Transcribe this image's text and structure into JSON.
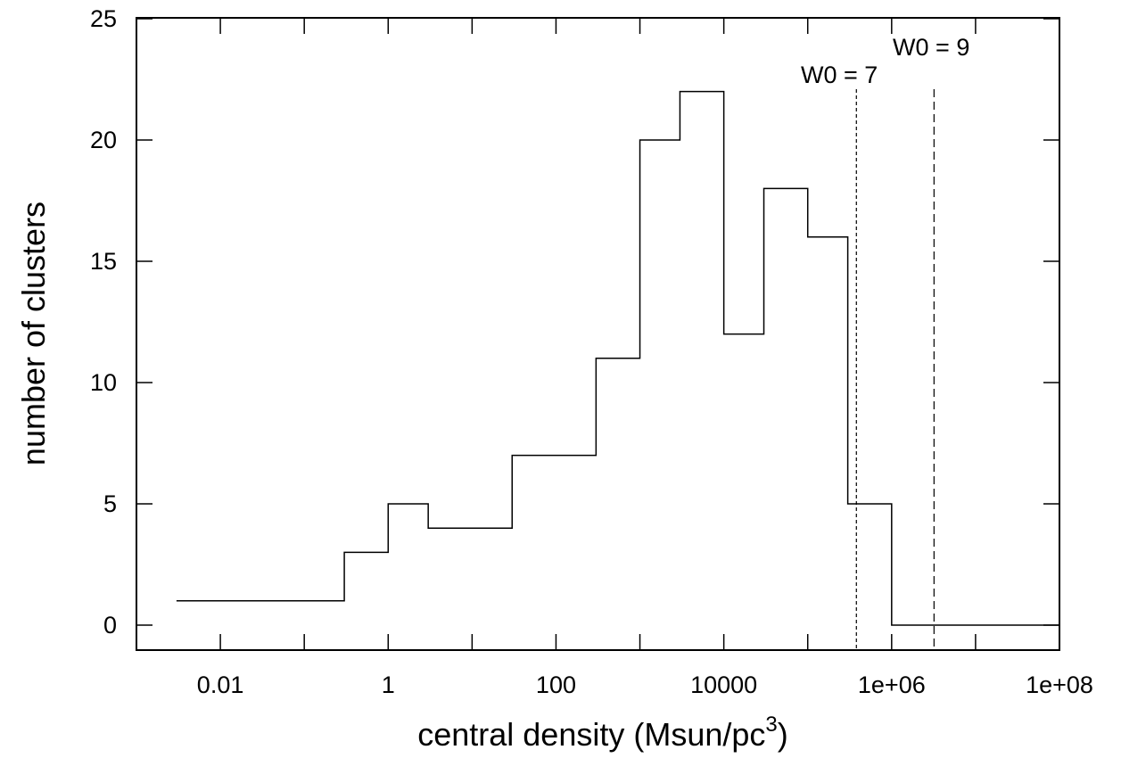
{
  "chart_data": {
    "type": "step-histogram",
    "xscale": "log10",
    "xlim": [
      0.001,
      100000000
    ],
    "ylim": [
      0,
      25
    ],
    "xlabel_main": "central density (Msun/pc",
    "xlabel_sup": "3",
    "xlabel_close": ")",
    "ylabel": "number of clusters",
    "xticks": [
      {
        "value": 0.01,
        "label": "0.01"
      },
      {
        "value": 1,
        "label": "1"
      },
      {
        "value": 100,
        "label": "100"
      },
      {
        "value": 10000,
        "label": "10000"
      },
      {
        "value": 1000000,
        "label": "1e+06"
      },
      {
        "value": 100000000,
        "label": "1e+08"
      }
    ],
    "yticks": [
      {
        "value": 0,
        "label": "0"
      },
      {
        "value": 5,
        "label": "5"
      },
      {
        "value": 10,
        "label": "10"
      },
      {
        "value": 15,
        "label": "15"
      },
      {
        "value": 20,
        "label": "20"
      },
      {
        "value": 25,
        "label": "25"
      }
    ],
    "bins": [
      {
        "x0": 0.003,
        "x1": 0.3,
        "count": 1
      },
      {
        "x0": 0.3,
        "x1": 1,
        "count": 3
      },
      {
        "x0": 1,
        "x1": 3,
        "count": 5
      },
      {
        "x0": 3,
        "x1": 30,
        "count": 4
      },
      {
        "x0": 30,
        "x1": 300,
        "count": 7
      },
      {
        "x0": 300,
        "x1": 1000,
        "count": 11
      },
      {
        "x0": 1000,
        "x1": 3000,
        "count": 20
      },
      {
        "x0": 3000,
        "x1": 10000,
        "count": 22
      },
      {
        "x0": 10000,
        "x1": 30000,
        "count": 12
      },
      {
        "x0": 30000,
        "x1": 100000,
        "count": 18
      },
      {
        "x0": 100000,
        "x1": 300000,
        "count": 16
      },
      {
        "x0": 300000,
        "x1": 1000000,
        "count": 5
      },
      {
        "x0": 1000000,
        "x1": 100000000,
        "count": 0
      }
    ],
    "annotations": [
      {
        "x": 380000,
        "label": "W0 = 7",
        "style": "short-dash"
      },
      {
        "x": 3200000,
        "label": "W0 = 9",
        "style": "long-dash"
      }
    ],
    "grid": false
  }
}
